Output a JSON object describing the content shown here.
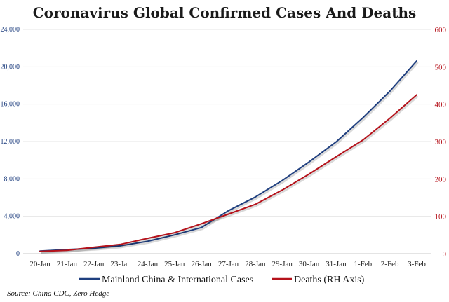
{
  "chart_data": {
    "type": "line",
    "title": "Coronavirus Global Confirmed Cases And Deaths",
    "categories": [
      "20-Jan",
      "21-Jan",
      "22-Jan",
      "23-Jan",
      "24-Jan",
      "25-Jan",
      "26-Jan",
      "27-Jan",
      "28-Jan",
      "29-Jan",
      "30-Jan",
      "31-Jan",
      "1-Feb",
      "2-Feb",
      "3-Feb"
    ],
    "y_left": {
      "min": 0,
      "max": 24000,
      "ticks": [
        "0",
        "4,000",
        "8,000",
        "12,000",
        "16,000",
        "20,000",
        "24,000"
      ],
      "tick_values": [
        0,
        4000,
        8000,
        12000,
        16000,
        20000,
        24000
      ]
    },
    "y_right": {
      "min": 0,
      "max": 600,
      "ticks": [
        "0",
        "100",
        "200",
        "300",
        "400",
        "500",
        "600"
      ],
      "tick_values": [
        0,
        100,
        200,
        300,
        400,
        500,
        600
      ]
    },
    "series": [
      {
        "name": "Mainland China & International Cases",
        "axis": "left",
        "color": "#1f3f7f",
        "values": [
          280,
          440,
          580,
          850,
          1320,
          2010,
          2800,
          4600,
          6060,
          7820,
          9820,
          11950,
          14550,
          17380,
          20630
        ]
      },
      {
        "name": "Deaths (RH Axis)",
        "axis": "right",
        "color": "#b5121b",
        "values": [
          6,
          9,
          17,
          25,
          41,
          56,
          80,
          106,
          132,
          170,
          213,
          259,
          304,
          362,
          425
        ]
      }
    ],
    "source": "Source: China CDC, Zero Hedge"
  }
}
